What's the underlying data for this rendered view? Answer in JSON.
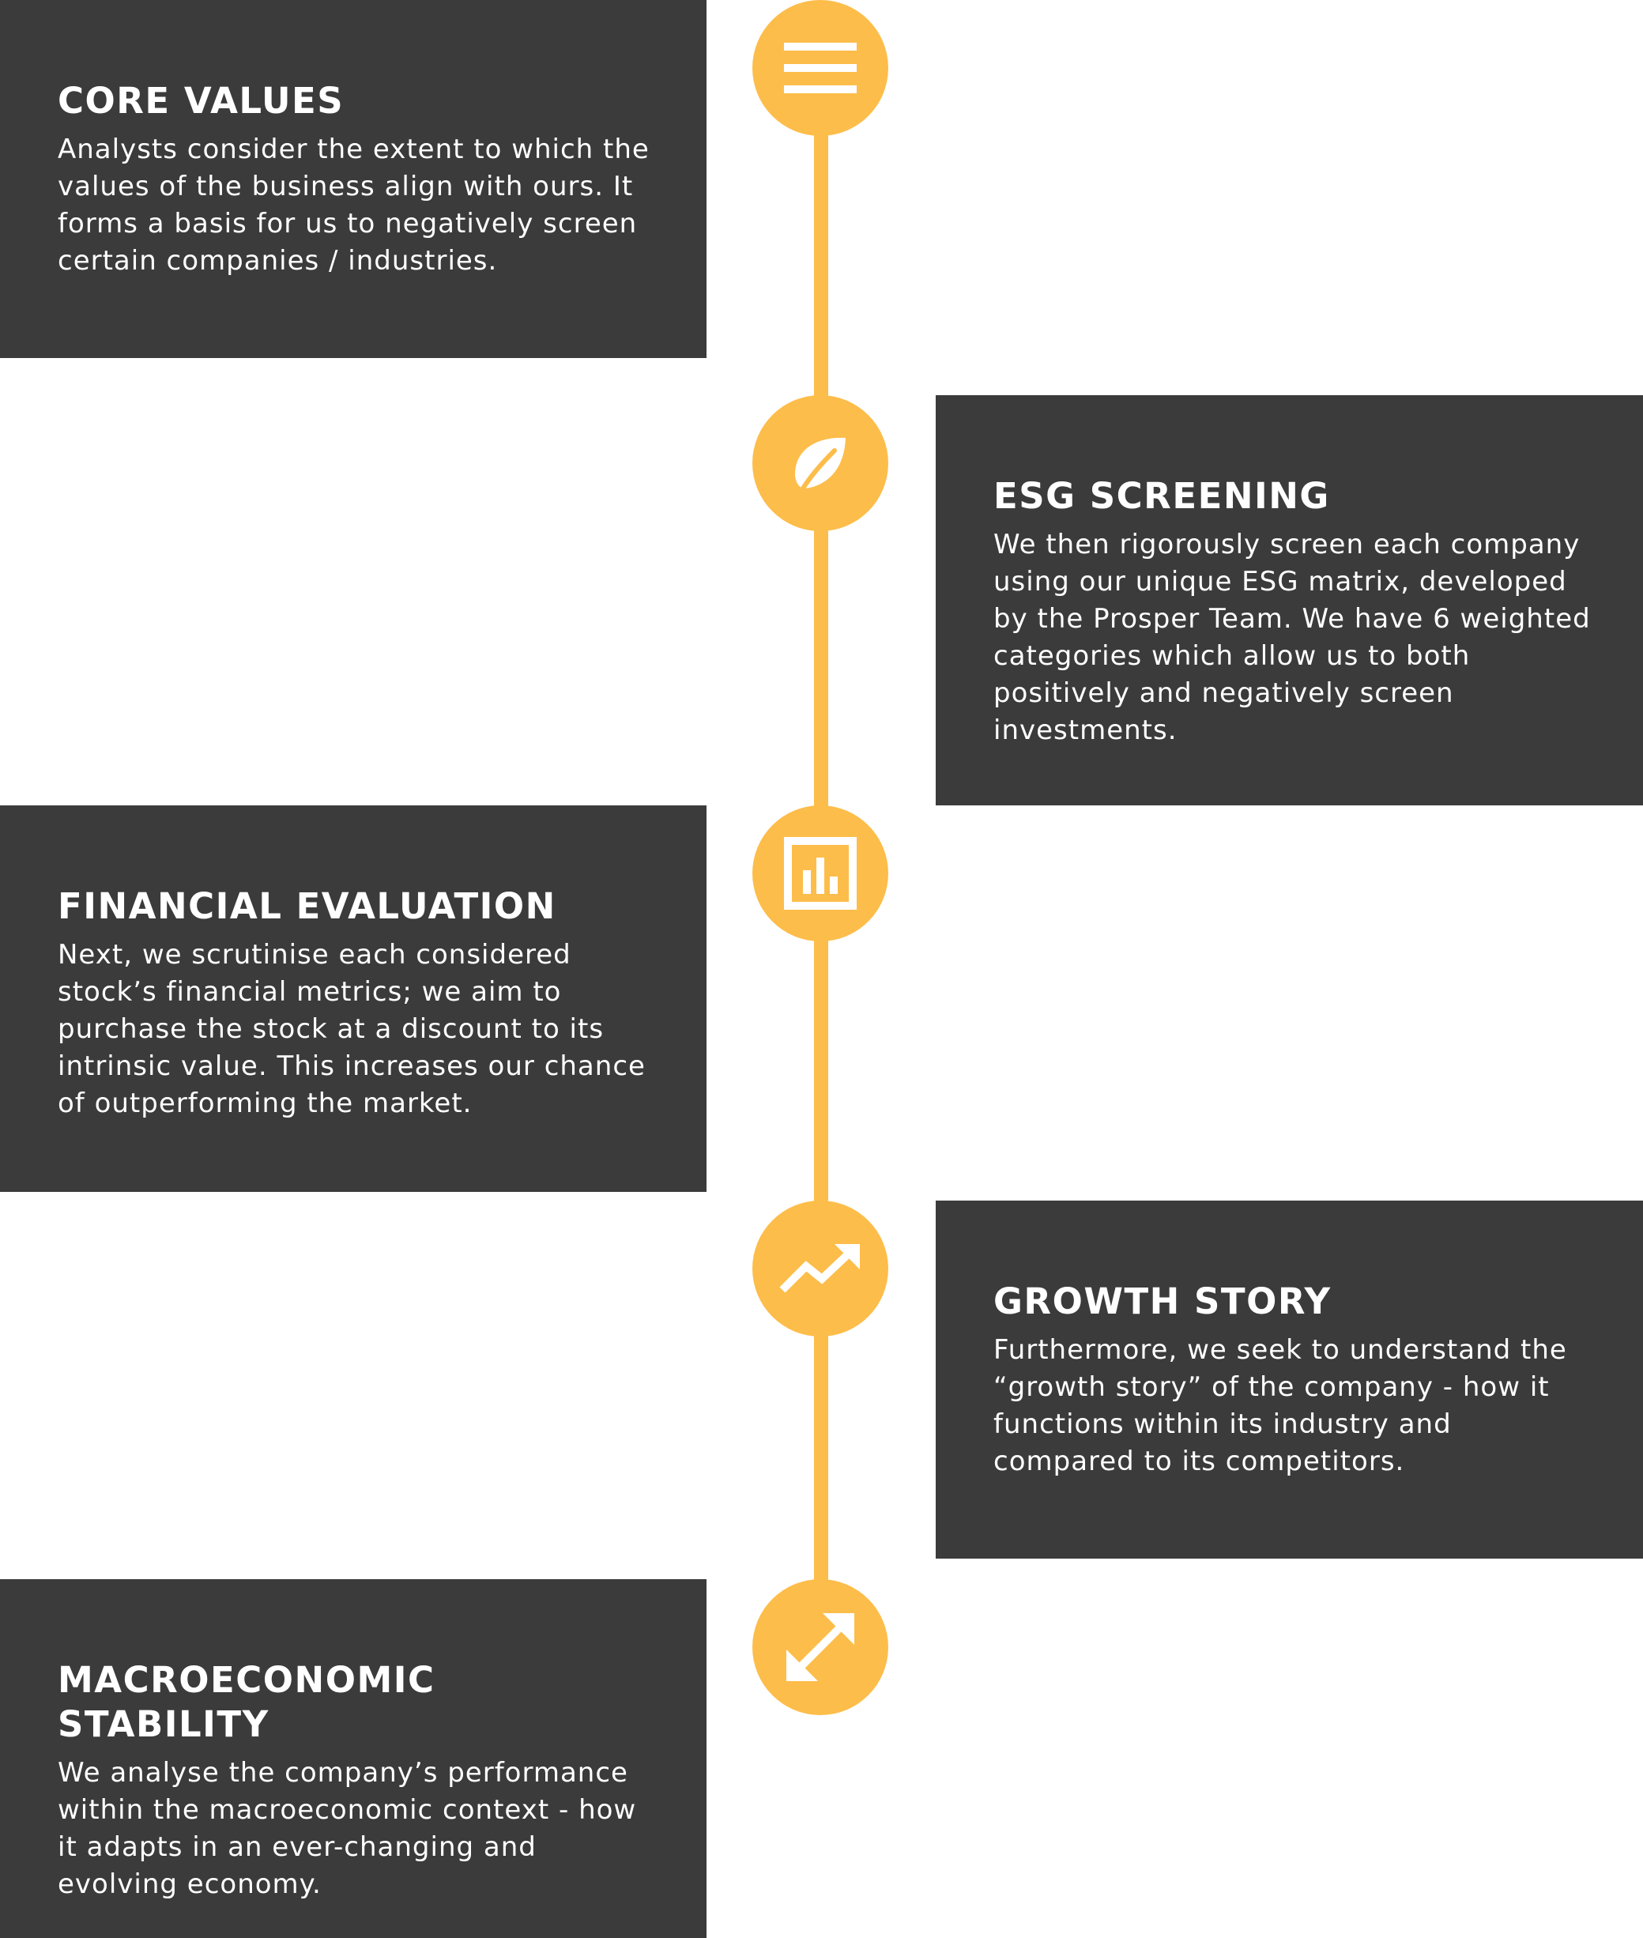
{
  "colors": {
    "accent": "#fdbd4a",
    "card_background": "#3b3b3b",
    "text": "#ffffff",
    "page_background": "#ffffff"
  },
  "steps": [
    {
      "title": "CORE VALUES",
      "description": "Analysts consider the extent to which the values of the business align with ours. It forms a basis for us to negatively screen certain companies / industries.",
      "icon": "menu-lines-icon"
    },
    {
      "title": "ESG SCREENING",
      "description": "We then rigorously screen each company using our unique ESG matrix, developed by the Prosper Team. We have 6 weighted categories which allow us to both positively and negatively screen investments.",
      "icon": "leaf-icon"
    },
    {
      "title": "FINANCIAL EVALUATION",
      "description": "Next, we scrutinise each considered stock’s financial metrics; we aim to purchase the stock at a discount to its intrinsic value. This increases our chance of outperforming the market.",
      "icon": "bar-chart-icon"
    },
    {
      "title": "GROWTH STORY",
      "description": "Furthermore, we seek to understand the “growth story” of the company - how it functions within its industry and compared to its competitors.",
      "icon": "trending-up-icon"
    },
    {
      "title": "MACROECONOMIC STABILITY",
      "description": "We analyse the company’s performance within the macroeconomic context - how it adapts in an ever-changing and evolving economy.",
      "icon": "expand-arrows-icon"
    }
  ]
}
